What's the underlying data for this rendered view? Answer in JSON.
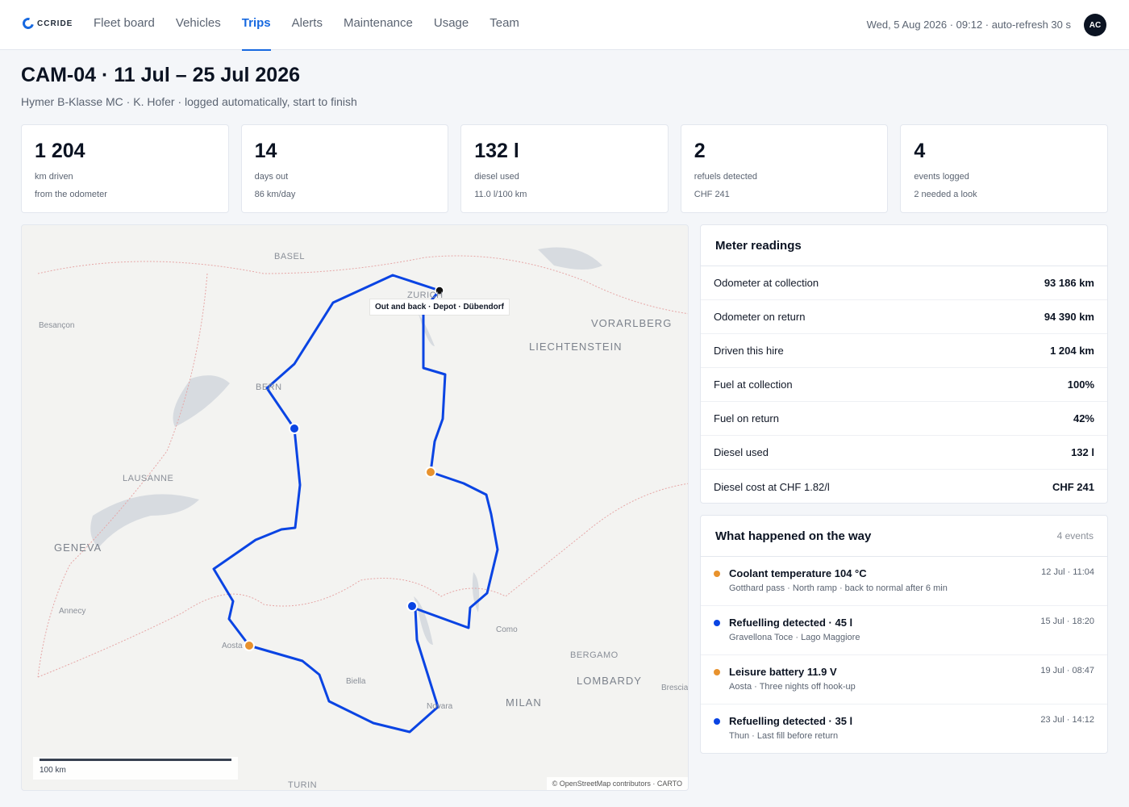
{
  "app": {
    "logo_text": "CCRIDE"
  },
  "nav": {
    "items": [
      {
        "label": "Fleet board",
        "active": false
      },
      {
        "label": "Vehicles",
        "active": false
      },
      {
        "label": "Trips",
        "active": true
      },
      {
        "label": "Alerts",
        "active": false
      },
      {
        "label": "Maintenance",
        "active": false
      },
      {
        "label": "Usage",
        "active": false
      },
      {
        "label": "Team",
        "active": false
      }
    ]
  },
  "status": {
    "text": "Wed, 5 Aug 2026 · 09:12 · auto-refresh 30 s",
    "avatar_initials": "AC"
  },
  "page": {
    "title": "CAM-04 · 11 Jul – 25 Jul 2026",
    "subtitle": "Hymer B-Klasse MC · K. Hofer · logged automatically, start to finish"
  },
  "kpis": [
    {
      "value": "1 204",
      "label": "km driven",
      "note": "from the odometer"
    },
    {
      "value": "14",
      "label": "days out",
      "note": "86 km/day"
    },
    {
      "value": "132 l",
      "label": "diesel used",
      "note": "11.0 l/100 km"
    },
    {
      "value": "2",
      "label": "refuels detected",
      "note": "CHF 241"
    },
    {
      "value": "4",
      "label": "events logged",
      "note": "2 needed a look"
    }
  ],
  "map": {
    "labels": {
      "basel": "BASEL",
      "zurich": "ZURICH",
      "besancon": "Besançon",
      "vorarlberg": "VORARLBERG",
      "liechtenstein": "LIECHTENSTEIN",
      "bern": "BERN",
      "lausanne": "LAUSANNE",
      "geneva": "GENEVA",
      "annecy": "Annecy",
      "como": "Como",
      "bergamo": "BERGAMO",
      "lombardy": "LOMBARDY",
      "brescia": "Brescia",
      "biella": "Biella",
      "novara": "Novara",
      "milan": "MILAN",
      "turin": "TURIN",
      "aosta": "Aosta"
    },
    "depot_label": "Out and back · Depot · Dübendorf",
    "scale_label": "100 km",
    "attribution": "© OpenStreetMap contributors · CARTO",
    "route_color": "#0a44e3",
    "marker_colors": {
      "depot": "#111111",
      "refuel": "#0a44e3",
      "warning": "#e8922d"
    }
  },
  "meter": {
    "title": "Meter readings",
    "rows": [
      {
        "label": "Odometer at collection",
        "value": "93 186 km"
      },
      {
        "label": "Odometer on return",
        "value": "94 390 km"
      },
      {
        "label": "Driven this hire",
        "value": "1 204 km"
      },
      {
        "label": "Fuel at collection",
        "value": "100%"
      },
      {
        "label": "Fuel on return",
        "value": "42%"
      },
      {
        "label": "Diesel used",
        "value": "132 l"
      },
      {
        "label": "Diesel cost at CHF 1.82/l",
        "value": "CHF 241"
      }
    ]
  },
  "events": {
    "title": "What happened on the way",
    "count": "4 events",
    "items": [
      {
        "title": "Coolant temperature 104 °C",
        "detail": "Gotthard pass · North ramp · back to normal after 6 min",
        "time": "12 Jul · 11:04",
        "color": "#e8922d"
      },
      {
        "title": "Refuelling detected · 45 l",
        "detail": "Gravellona Toce · Lago Maggiore",
        "time": "15 Jul · 18:20",
        "color": "#0a44e3"
      },
      {
        "title": "Leisure battery 11.9 V",
        "detail": "Aosta · Three nights off hook-up",
        "time": "19 Jul · 08:47",
        "color": "#e8922d"
      },
      {
        "title": "Refuelling detected · 35 l",
        "detail": "Thun · Last fill before return",
        "time": "23 Jul · 14:12",
        "color": "#0a44e3"
      }
    ]
  }
}
